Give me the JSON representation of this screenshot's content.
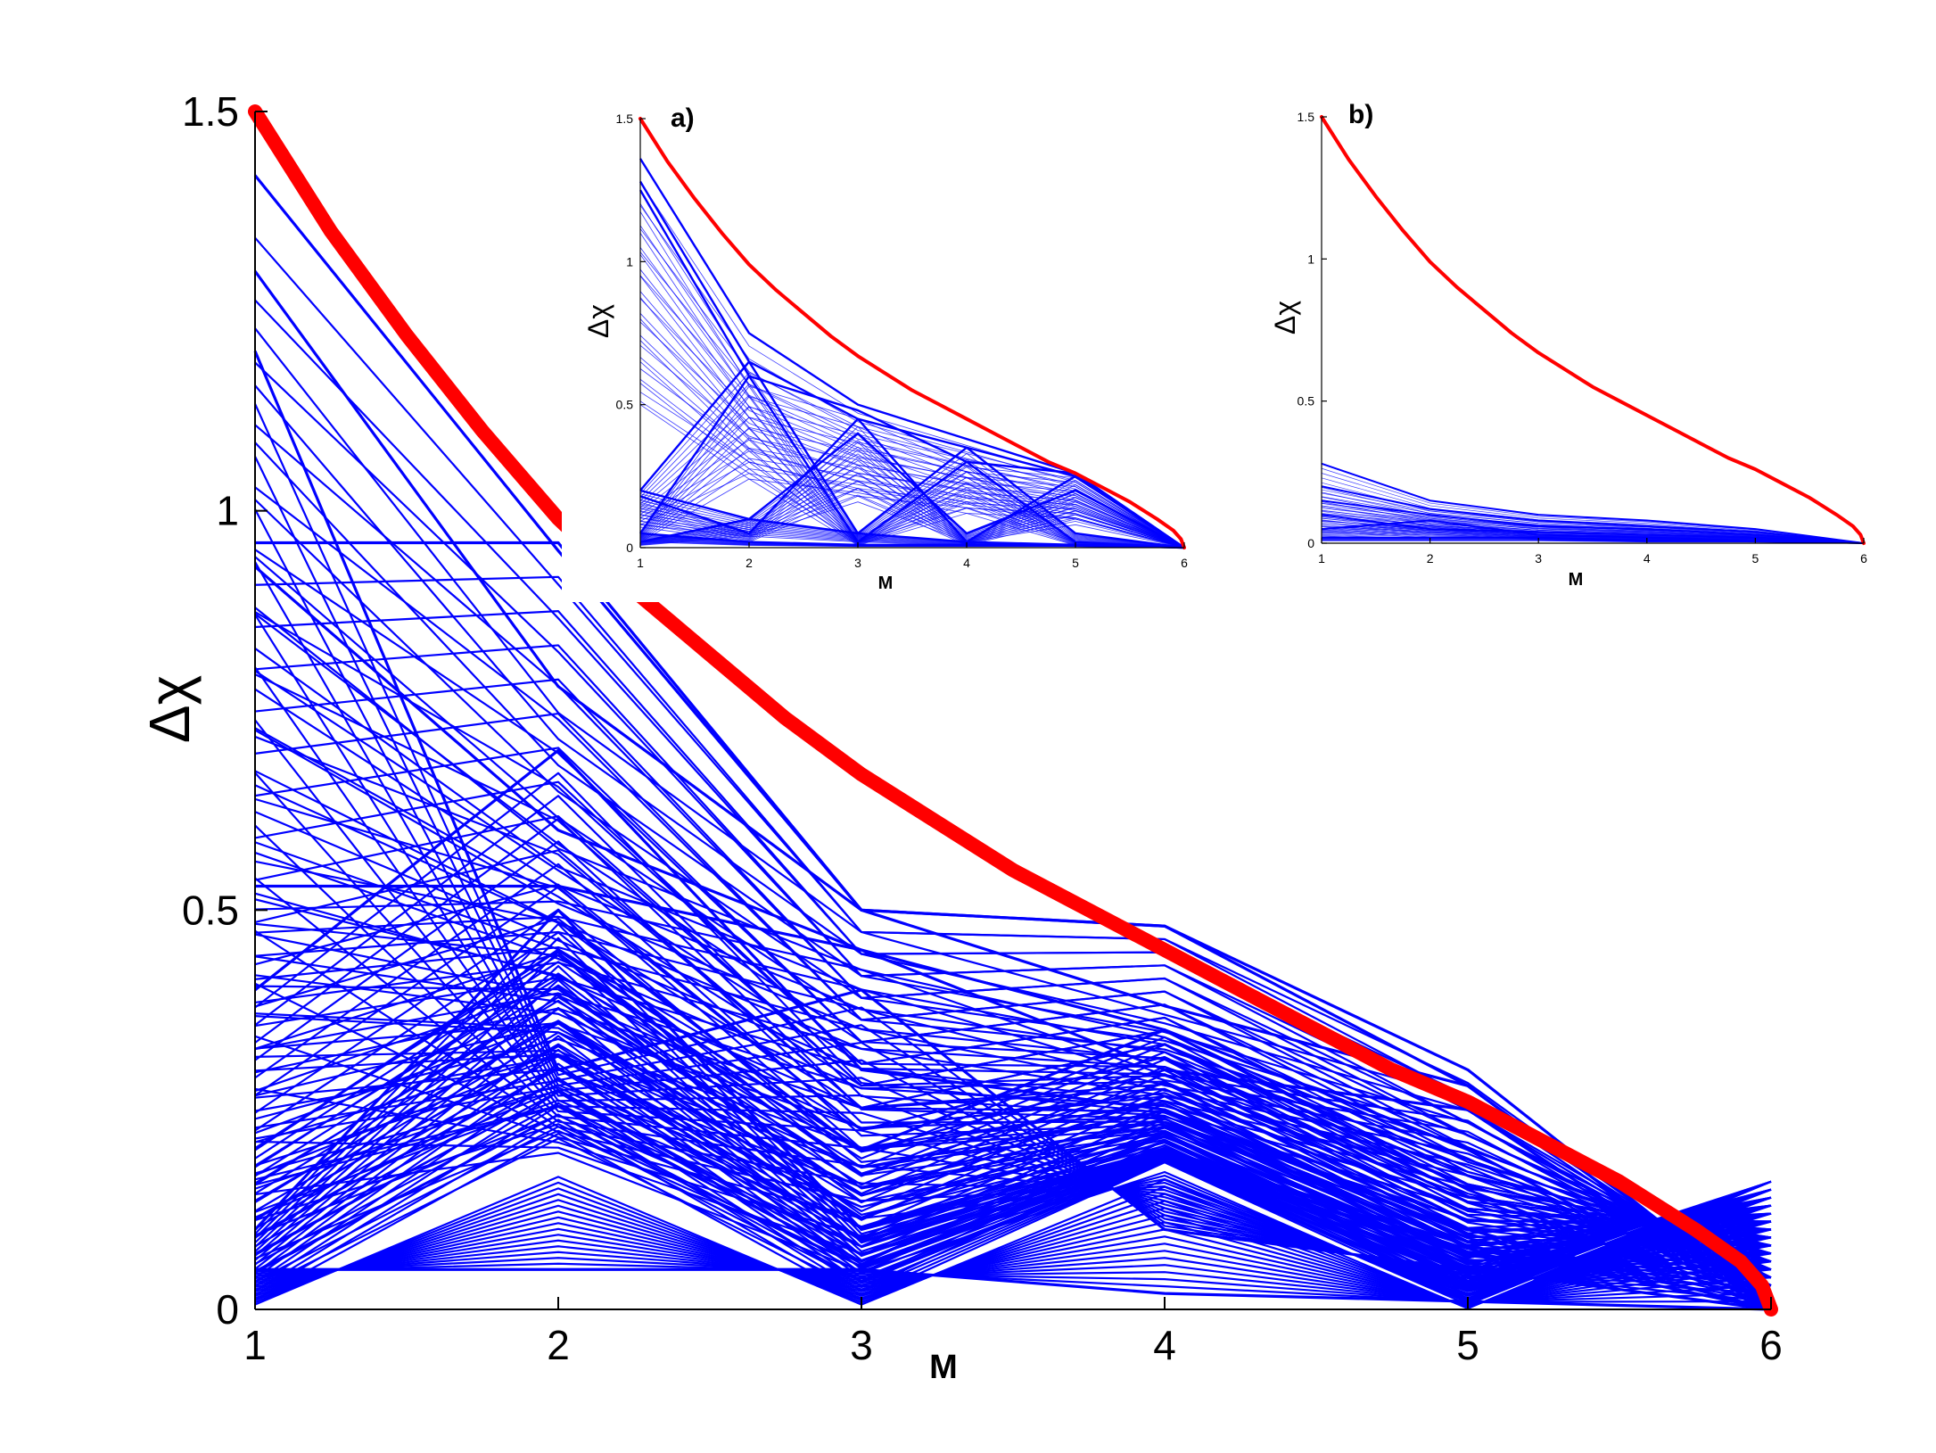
{
  "chart_data": [
    {
      "id": "main",
      "type": "line",
      "title": "",
      "xlabel": "M",
      "ylabel": "Δχ",
      "xlim": [
        1,
        6
      ],
      "ylim": [
        0,
        1.5
      ],
      "xticks": [
        "1",
        "2",
        "3",
        "4",
        "5",
        "6"
      ],
      "yticks": [
        "0",
        "0.5",
        "1",
        "1.5"
      ],
      "colors": {
        "bound": "#ff0000",
        "trajectories": "#0000ff"
      },
      "series": [
        {
          "role": "upper-bound",
          "x": [
            1,
            1.25,
            1.5,
            1.75,
            2,
            2.25,
            2.5,
            2.75,
            3,
            3.25,
            3.5,
            3.75,
            4,
            4.25,
            4.5,
            4.75,
            5,
            5.25,
            5.5,
            5.75,
            5.9,
            5.97,
            6
          ],
          "values": [
            1.5,
            1.35,
            1.22,
            1.1,
            0.99,
            0.9,
            0.82,
            0.74,
            0.67,
            0.61,
            0.55,
            0.5,
            0.45,
            0.4,
            0.35,
            0.3,
            0.26,
            0.21,
            0.16,
            0.1,
            0.06,
            0.03,
            0
          ]
        },
        {
          "role": "trajectories",
          "x": [
            1,
            2,
            3,
            4,
            5,
            6
          ],
          "values": [
            [
              1.42,
              0.95,
              0.5,
              0.48,
              0.3,
              0
            ],
            [
              1.3,
              0.78,
              0.5,
              0.38,
              0.28,
              0
            ],
            [
              0.96,
              0.96,
              0.5,
              0.48,
              0.28,
              0
            ],
            [
              0.93,
              0.6,
              0.45,
              0.35,
              0.2,
              0
            ],
            [
              0.53,
              0.53,
              0.45,
              0.3,
              0.25,
              0
            ],
            [
              0.4,
              0.7,
              0.3,
              0.25,
              0.1,
              0
            ],
            [
              0.2,
              0.45,
              0.2,
              0.35,
              0.15,
              0
            ],
            [
              1.2,
              0.3,
              0.4,
              0.1,
              0.05,
              0
            ],
            [
              0.1,
              0.5,
              0.1,
              0.2,
              0.08,
              0
            ],
            [
              0.05,
              0.05,
              0.05,
              0.02,
              0.01,
              0
            ]
          ]
        }
      ]
    },
    {
      "id": "inset-a",
      "type": "line",
      "title": "a)",
      "xlabel": "M",
      "ylabel": "Δχ",
      "xlim": [
        1,
        6
      ],
      "ylim": [
        0,
        1.5
      ],
      "xticks": [
        "1",
        "2",
        "3",
        "4",
        "5",
        "6"
      ],
      "yticks": [
        "0",
        "0.5",
        "1",
        "1.5"
      ],
      "colors": {
        "bound": "#ff0000",
        "trajectories": "#0000ff"
      },
      "series": [
        {
          "role": "upper-bound",
          "x": [
            1,
            1.25,
            1.5,
            1.75,
            2,
            2.25,
            2.5,
            2.75,
            3,
            3.25,
            3.5,
            3.75,
            4,
            4.25,
            4.5,
            4.75,
            5,
            5.25,
            5.5,
            5.75,
            5.9,
            5.97,
            6
          ],
          "values": [
            1.5,
            1.35,
            1.22,
            1.1,
            0.99,
            0.9,
            0.82,
            0.74,
            0.67,
            0.61,
            0.55,
            0.5,
            0.45,
            0.4,
            0.35,
            0.3,
            0.26,
            0.21,
            0.16,
            0.1,
            0.06,
            0.03,
            0
          ]
        },
        {
          "role": "trajectories",
          "x": [
            1,
            2,
            3,
            4,
            5,
            6
          ],
          "values": [
            [
              1.36,
              0.75,
              0.5,
              0.38,
              0.26,
              0
            ],
            [
              1.28,
              0.65,
              0.45,
              0.35,
              0.25,
              0
            ],
            [
              1.25,
              0.6,
              0.48,
              0.3,
              0.26,
              0
            ],
            [
              0.2,
              0.65,
              0.05,
              0.35,
              0.05,
              0
            ],
            [
              0.05,
              0.6,
              0.02,
              0.3,
              0.02,
              0
            ],
            [
              0.18,
              0.05,
              0.45,
              0.02,
              0.25,
              0
            ],
            [
              0.02,
              0.1,
              0.4,
              0.05,
              0.2,
              0
            ],
            [
              0.2,
              0.1,
              0.05,
              0.02,
              0.01,
              0
            ],
            [
              0.05,
              0.02,
              0.01,
              0.01,
              0.01,
              0
            ]
          ]
        }
      ]
    },
    {
      "id": "inset-b",
      "type": "line",
      "title": "b)",
      "xlabel": "M",
      "ylabel": "Δχ",
      "xlim": [
        1,
        6
      ],
      "ylim": [
        0,
        1.5
      ],
      "xticks": [
        "1",
        "2",
        "3",
        "4",
        "5",
        "6"
      ],
      "yticks": [
        "0",
        "0.5",
        "1",
        "1.5"
      ],
      "colors": {
        "bound": "#ff0000",
        "trajectories": "#0000ff"
      },
      "series": [
        {
          "role": "upper-bound",
          "x": [
            1,
            1.25,
            1.5,
            1.75,
            2,
            2.25,
            2.5,
            2.75,
            3,
            3.25,
            3.5,
            3.75,
            4,
            4.25,
            4.5,
            4.75,
            5,
            5.25,
            5.5,
            5.75,
            5.9,
            5.97,
            6
          ],
          "values": [
            1.5,
            1.35,
            1.22,
            1.1,
            0.99,
            0.9,
            0.82,
            0.74,
            0.67,
            0.61,
            0.55,
            0.5,
            0.45,
            0.4,
            0.35,
            0.3,
            0.26,
            0.21,
            0.16,
            0.1,
            0.06,
            0.03,
            0
          ]
        },
        {
          "role": "trajectories",
          "x": [
            1,
            2,
            3,
            4,
            5,
            6
          ],
          "values": [
            [
              0.28,
              0.15,
              0.1,
              0.08,
              0.05,
              0
            ],
            [
              0.2,
              0.12,
              0.08,
              0.06,
              0.04,
              0
            ],
            [
              0.15,
              0.1,
              0.06,
              0.05,
              0.03,
              0
            ],
            [
              0.1,
              0.05,
              0.04,
              0.03,
              0.02,
              0
            ],
            [
              0.05,
              0.08,
              0.03,
              0.02,
              0.01,
              0
            ],
            [
              0.02,
              0.02,
              0.02,
              0.01,
              0.01,
              0
            ]
          ]
        }
      ]
    }
  ]
}
